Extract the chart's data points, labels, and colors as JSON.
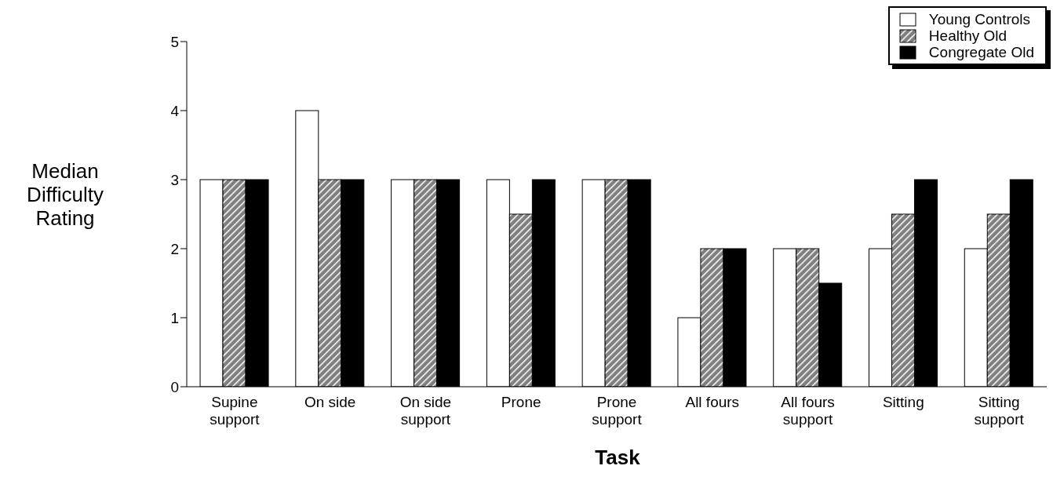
{
  "chart_data": {
    "type": "bar",
    "xlabel": "Task",
    "ylabel": "Median Difficulty Rating",
    "categories": [
      "Supine support",
      "On side",
      "On side support",
      "Prone",
      "Prone support",
      "All fours",
      "All fours support",
      "Sitting",
      "Sitting support"
    ],
    "series": [
      {
        "name": "Young Controls",
        "color": "#ffffff",
        "values": [
          3,
          4,
          3,
          3,
          3,
          1,
          2,
          2,
          2
        ]
      },
      {
        "name": "Healthy Old",
        "color": "#7f7f7f",
        "values": [
          3,
          3,
          3,
          2.5,
          3,
          2,
          2,
          2.5,
          2.5
        ]
      },
      {
        "name": "Congregate Old",
        "color": "#000000",
        "values": [
          3,
          3,
          3,
          3,
          3,
          2,
          1.5,
          3,
          3
        ]
      }
    ],
    "ylim": [
      0,
      5
    ],
    "yticks": [
      0,
      1,
      2,
      3,
      4,
      5
    ],
    "grid": false,
    "legend": "top right"
  }
}
